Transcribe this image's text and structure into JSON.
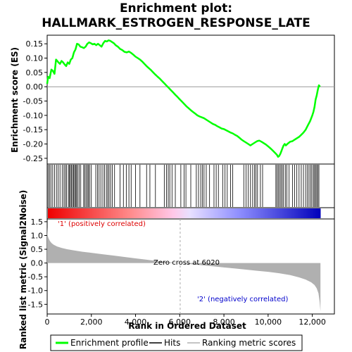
{
  "chart_data": {
    "type": "line",
    "title_line1": "Enrichment plot:",
    "title_line2": "HALLMARK_ESTROGEN_RESPONSE_LATE",
    "enrichment_panel": {
      "ylabel": "Enrichment score (ES)",
      "ylim": [
        -0.27,
        0.18
      ],
      "yticks": [
        "0.15",
        "0.10",
        "0.05",
        "0.00",
        "-0.05",
        "-0.10",
        "-0.15",
        "-0.20",
        "-0.25"
      ],
      "ytick_values": [
        0.15,
        0.1,
        0.05,
        0.0,
        -0.05,
        -0.1,
        -0.15,
        -0.2,
        -0.25
      ],
      "series_color": "#00ff00",
      "es_profile": {
        "x": [
          0,
          40,
          110,
          190,
          260,
          330,
          400,
          460,
          510,
          580,
          650,
          720,
          790,
          860,
          930,
          1000,
          1070,
          1140,
          1210,
          1280,
          1350,
          1420,
          1500,
          1580,
          1660,
          1740,
          1820,
          1900,
          1980,
          2060,
          2140,
          2220,
          2300,
          2380,
          2460,
          2540,
          2620,
          2700,
          2780,
          2860,
          2940,
          3020,
          3100,
          3200,
          3300,
          3400,
          3500,
          3600,
          3700,
          3800,
          3900,
          4000,
          4100,
          4200,
          4300,
          4400,
          4500,
          4600,
          4700,
          4800,
          4900,
          5000,
          5100,
          5200,
          5300,
          5400,
          5500,
          5600,
          5700,
          5800,
          5900,
          6000,
          6100,
          6200,
          6300,
          6400,
          6500,
          6600,
          6700,
          6800,
          6900,
          7000,
          7100,
          7200,
          7300,
          7400,
          7500,
          7600,
          7700,
          7800,
          7900,
          8000,
          8100,
          8200,
          8300,
          8400,
          8500,
          8600,
          8700,
          8800,
          8900,
          9000,
          9100,
          9200,
          9300,
          9400,
          9500,
          9600,
          9700,
          9800,
          9900,
          10000,
          10100,
          10200,
          10300,
          10400,
          10450,
          10500,
          10550,
          10600,
          10650,
          10700,
          10750,
          10800,
          10900,
          11000,
          11100,
          11200,
          11300,
          11400,
          11500,
          11600,
          11700,
          11800,
          11900,
          12000,
          12050,
          12100,
          12150,
          12200,
          12250,
          12300,
          12350
        ],
        "y": [
          0.01,
          0.035,
          0.03,
          0.06,
          0.055,
          0.045,
          0.095,
          0.09,
          0.085,
          0.08,
          0.09,
          0.085,
          0.078,
          0.072,
          0.085,
          0.08,
          0.095,
          0.1,
          0.12,
          0.13,
          0.15,
          0.148,
          0.14,
          0.138,
          0.135,
          0.14,
          0.15,
          0.155,
          0.152,
          0.148,
          0.15,
          0.145,
          0.15,
          0.145,
          0.14,
          0.152,
          0.16,
          0.158,
          0.162,
          0.16,
          0.156,
          0.152,
          0.145,
          0.14,
          0.132,
          0.128,
          0.122,
          0.12,
          0.123,
          0.118,
          0.112,
          0.105,
          0.1,
          0.095,
          0.088,
          0.08,
          0.072,
          0.065,
          0.058,
          0.05,
          0.042,
          0.035,
          0.028,
          0.02,
          0.012,
          0.004,
          -0.004,
          -0.012,
          -0.02,
          -0.028,
          -0.036,
          -0.044,
          -0.052,
          -0.06,
          -0.068,
          -0.075,
          -0.082,
          -0.088,
          -0.094,
          -0.1,
          -0.104,
          -0.107,
          -0.11,
          -0.115,
          -0.12,
          -0.125,
          -0.13,
          -0.133,
          -0.138,
          -0.142,
          -0.146,
          -0.148,
          -0.152,
          -0.156,
          -0.16,
          -0.163,
          -0.168,
          -0.172,
          -0.178,
          -0.185,
          -0.19,
          -0.195,
          -0.2,
          -0.205,
          -0.2,
          -0.195,
          -0.19,
          -0.188,
          -0.192,
          -0.197,
          -0.202,
          -0.208,
          -0.215,
          -0.222,
          -0.23,
          -0.238,
          -0.245,
          -0.242,
          -0.235,
          -0.225,
          -0.215,
          -0.205,
          -0.2,
          -0.205,
          -0.198,
          -0.192,
          -0.19,
          -0.185,
          -0.18,
          -0.175,
          -0.168,
          -0.16,
          -0.15,
          -0.135,
          -0.12,
          -0.1,
          -0.088,
          -0.07,
          -0.045,
          -0.03,
          -0.01,
          0.005,
          0.0
        ]
      }
    },
    "hits": {
      "positions": [
        45,
        110,
        170,
        250,
        330,
        420,
        500,
        580,
        680,
        760,
        820,
        880,
        960,
        1010,
        1050,
        1100,
        1150,
        1200,
        1240,
        1290,
        1330,
        1380,
        1450,
        1520,
        1650,
        1700,
        1760,
        1820,
        1870,
        1920,
        2000,
        2200,
        2280,
        2350,
        2430,
        2520,
        2600,
        2680,
        2740,
        2800,
        2870,
        2950,
        3050,
        3300,
        3450,
        3580,
        3700,
        3800,
        4000,
        4200,
        4500,
        4650,
        4900,
        5300,
        5400,
        5480,
        5550,
        5650,
        5800,
        6050,
        6200,
        6280,
        6500,
        6750,
        6850,
        6950,
        7030,
        7100,
        7200,
        7350,
        7550,
        7650,
        7750,
        7950,
        8050,
        8150,
        8300,
        8400,
        8900,
        9000,
        9100,
        9200,
        9300,
        9380,
        9450,
        9520,
        9650,
        9750,
        10350,
        10400,
        10460,
        10520,
        10580,
        10640,
        10700,
        10780,
        10850,
        10950,
        11100,
        11200,
        11300,
        11400,
        11500,
        11600,
        11700,
        11780,
        11850,
        11920,
        11980,
        12050,
        12100,
        12150,
        12200,
        12250,
        12300
      ]
    },
    "ranked_metric_panel": {
      "ylabel": "Ranked list metric (Signal2Noise)",
      "ylim": [
        -1.85,
        1.6
      ],
      "yticks": [
        "1.5",
        "1.0",
        "0.5",
        "0.0",
        "-0.5",
        "-1.0",
        "-1.5"
      ],
      "ytick_values": [
        1.5,
        1.0,
        0.5,
        0.0,
        -0.5,
        -1.0,
        -1.5
      ],
      "metric_curve": {
        "x": [
          0,
          20,
          60,
          120,
          200,
          300,
          450,
          650,
          900,
          1200,
          1600,
          2000,
          2500,
          3000,
          3500,
          4000,
          4500,
          5000,
          5500,
          6020,
          6500,
          7000,
          7500,
          8000,
          8500,
          9000,
          9500,
          10000,
          10500,
          11000,
          11400,
          11700,
          11950,
          12100,
          12200,
          12280,
          12330,
          12370
        ],
        "y": [
          1.3,
          1.0,
          0.9,
          0.8,
          0.72,
          0.66,
          0.6,
          0.55,
          0.5,
          0.46,
          0.41,
          0.37,
          0.32,
          0.27,
          0.22,
          0.17,
          0.12,
          0.07,
          0.03,
          0.0,
          -0.04,
          -0.08,
          -0.12,
          -0.16,
          -0.2,
          -0.24,
          -0.28,
          -0.32,
          -0.37,
          -0.44,
          -0.52,
          -0.6,
          -0.7,
          -0.8,
          -0.92,
          -1.1,
          -1.4,
          -1.75
        ]
      },
      "zero_cross_label": "Zero cross at 6020",
      "zero_cross_x": 6020,
      "positive_label": "'1' (positively correlated)",
      "positive_color": "#dd0000",
      "negative_label": "'2' (negatively correlated)",
      "negative_color": "#0000cc",
      "fill_color": "#b0b0b0"
    },
    "xaxis": {
      "xlabel": "Rank in Ordered Dataset",
      "xlim": [
        0,
        13000
      ],
      "xticks": [
        "0",
        "2,000",
        "4,000",
        "6,000",
        "8,000",
        "10,000",
        "12,000"
      ],
      "xtick_values": [
        0,
        2000,
        4000,
        6000,
        8000,
        10000,
        12000
      ],
      "n_genes": 12380
    },
    "legend": {
      "items": [
        {
          "label": "Enrichment profile",
          "color": "#00ff00"
        },
        {
          "label": "Hits",
          "color": "#000000"
        },
        {
          "label": "Ranking metric scores",
          "color": "#b0b0b0"
        }
      ],
      "placement": "bottom"
    },
    "grid": false
  }
}
